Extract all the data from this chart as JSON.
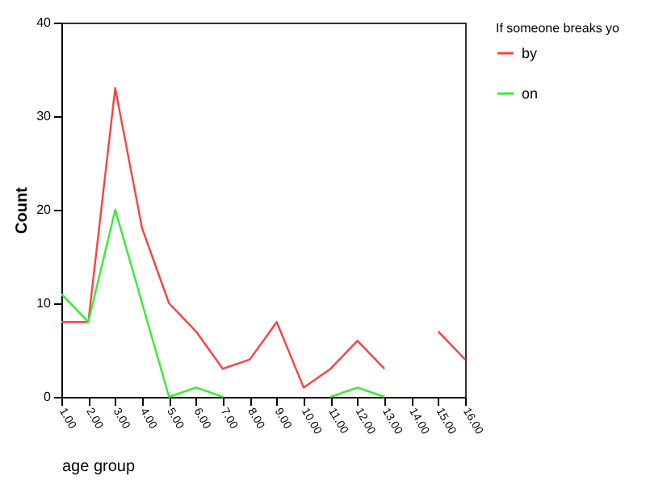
{
  "chart_data": {
    "type": "line",
    "xlabel": "age group",
    "ylabel": "Count",
    "legend_title": "If someone breaks yo",
    "categories": [
      "1.00",
      "2.00",
      "3.00",
      "4.00",
      "5.00",
      "6.00",
      "7.00",
      "8.00",
      "9.00",
      "10.00",
      "11.00",
      "12.00",
      "13.00",
      "14.00",
      "15.00",
      "16.00"
    ],
    "series": [
      {
        "name": "by",
        "color": "#ff4040",
        "values": [
          8,
          8,
          33,
          18,
          10,
          7,
          3,
          4,
          8,
          1,
          3,
          6,
          3,
          null,
          7,
          4
        ]
      },
      {
        "name": "on",
        "color": "#33ee33",
        "values": [
          11,
          8,
          20,
          10,
          0,
          1,
          0,
          null,
          null,
          null,
          0,
          1,
          0,
          null,
          null,
          null
        ]
      }
    ],
    "ylim": [
      0,
      40
    ],
    "yticks": [
      0,
      10,
      20,
      30,
      40
    ],
    "grid": false,
    "legend": "right",
    "marker": "none",
    "line_style": "solid"
  }
}
